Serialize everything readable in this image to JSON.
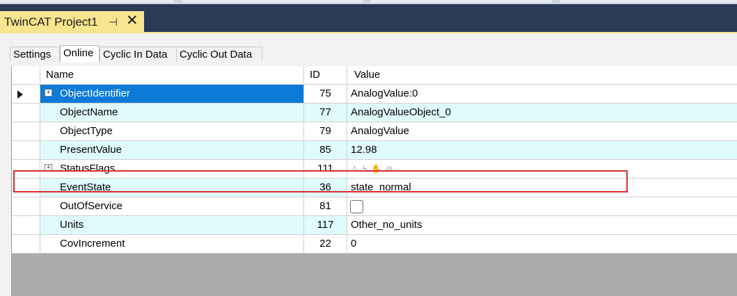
{
  "document_tab": {
    "title": "TwinCAT Project1",
    "pin_icon": "pin-icon",
    "close_icon": "close-icon"
  },
  "panel_tabs": [
    {
      "label": "Settings",
      "active": false
    },
    {
      "label": "Online",
      "active": true
    },
    {
      "label": "Cyclic In Data",
      "active": false
    },
    {
      "label": "Cyclic Out Data",
      "active": false
    }
  ],
  "grid": {
    "columns": {
      "name": "Name",
      "id": "ID",
      "value": "Value"
    },
    "rows": [
      {
        "name": "ObjectIdentifier",
        "id": "75",
        "value": "AnalogValue:0",
        "expandable": true,
        "selected": true
      },
      {
        "name": "ObjectName",
        "id": "77",
        "value": "AnalogValueObject_0"
      },
      {
        "name": "ObjectType",
        "id": "79",
        "value": "AnalogValue"
      },
      {
        "name": "PresentValue",
        "id": "85",
        "value": "12.98",
        "highlighted": true
      },
      {
        "name": "StatusFlags",
        "id": "111",
        "value": "",
        "expandable": true,
        "flag_icons": [
          "warning-icon",
          "fault-icon",
          "hand-override-icon",
          "out-of-service-icon"
        ]
      },
      {
        "name": "EventState",
        "id": "36",
        "value": "state_normal"
      },
      {
        "name": "OutOfService",
        "id": "81",
        "value": "",
        "checkbox": false
      },
      {
        "name": "Units",
        "id": "117",
        "value": "Other_no_units"
      },
      {
        "name": "CovIncrement",
        "id": "22",
        "value": "0"
      }
    ]
  },
  "colors": {
    "selected_row": "#0c7ad6",
    "alt_row": "#e0fbfc",
    "highlight_border": "#d92b2b",
    "doc_tab": "#f7e58f"
  }
}
